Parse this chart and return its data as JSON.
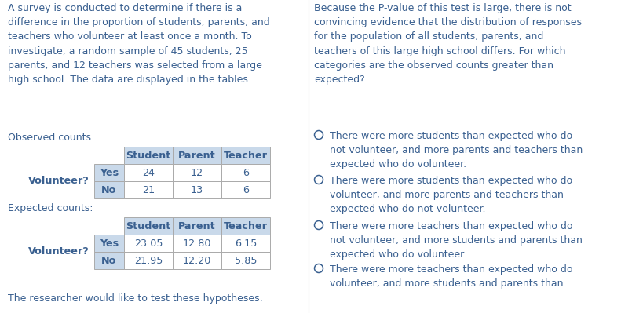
{
  "bg_color": "#ffffff",
  "text_color": "#3a6090",
  "left_intro": "A survey is conducted to determine if there is a\ndifference in the proportion of students, parents, and\nteachers who volunteer at least once a month. To\ninvestigate, a random sample of 45 students, 25\nparents, and 12 teachers was selected from a large\nhigh school. The data are displayed in the tables.",
  "obs_label": "Observed counts:",
  "exp_label": "Expected counts:",
  "bottom_text": "The researcher would like to test these hypotheses:",
  "col_headers": [
    "Student",
    "Parent",
    "Teacher"
  ],
  "row_labels": [
    "Yes",
    "No"
  ],
  "vol_label": "Volunteer?",
  "obs_data": [
    [
      "24",
      "12",
      "6"
    ],
    [
      "21",
      "13",
      "6"
    ]
  ],
  "exp_data": [
    [
      "23.05",
      "12.80",
      "6.15"
    ],
    [
      "21.95",
      "12.20",
      "5.85"
    ]
  ],
  "right_intro": "Because the P-value of this test is large, there is not\nconvincing evidence that the distribution of responses\nfor the population of all students, parents, and\nteachers of this large high school differs. For which\ncategories are the observed counts greater than\nexpected?",
  "options": [
    "There were more students than expected who do\nnot volunteer, and more parents and teachers than\nexpected who do volunteer.",
    "There were more students than expected who do\nvolunteer, and more parents and teachers than\nexpected who do not volunteer.",
    "There were more teachers than expected who do\nnot volunteer, and more students and parents than\nexpected who do volunteer.",
    "There were more teachers than expected who do\nvolunteer, and more students and parents than"
  ],
  "header_fill": "#c9d9ea",
  "cell_fill": "#ffffff",
  "table_border": "#aaaaaa",
  "font_size_body": 9.0,
  "font_size_table": 9.2,
  "divider_color": "#cccccc"
}
